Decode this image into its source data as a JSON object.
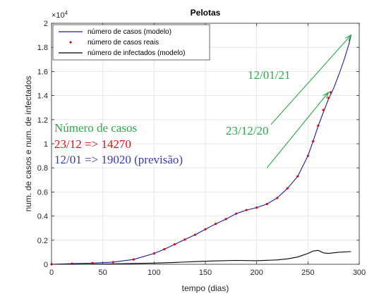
{
  "chart_data": {
    "type": "line",
    "title": "Pelotas",
    "xlabel": "tempo (dias)",
    "ylabel": "num. de casos e num. de infectados",
    "xlim": [
      0,
      300
    ],
    "ylim": [
      0,
      20000
    ],
    "x_ticks": [
      0,
      50,
      100,
      150,
      200,
      250,
      300
    ],
    "y_ticks": [
      0,
      2000,
      4000,
      6000,
      8000,
      10000,
      12000,
      14000,
      16000,
      18000,
      20000
    ],
    "y_tick_labels": [
      "0",
      "0.2",
      "0.4",
      "0.6",
      "0.8",
      "1",
      "1.2",
      "1.4",
      "1.6",
      "1.8",
      "2"
    ],
    "y_exponent": "×10",
    "y_exponent_power": "4",
    "grid": true,
    "legend_position": "top-left",
    "series": [
      {
        "name": "número de casos (modelo)",
        "style": "line",
        "color": "#1a1aa6",
        "x": [
          0,
          20,
          40,
          60,
          80,
          100,
          110,
          120,
          130,
          140,
          150,
          160,
          170,
          180,
          190,
          200,
          210,
          220,
          230,
          240,
          250,
          255,
          260,
          265,
          270,
          275,
          280,
          285,
          290,
          292
        ],
        "y": [
          0,
          50,
          100,
          180,
          400,
          900,
          1250,
          1650,
          2050,
          2450,
          2900,
          3350,
          3750,
          4200,
          4500,
          4700,
          5000,
          5500,
          6300,
          7300,
          9000,
          10200,
          11500,
          12600,
          13700,
          14600,
          15700,
          16900,
          18300,
          19020
        ]
      },
      {
        "name": "número de casos reais",
        "style": "markers",
        "color": "#e8000b",
        "x": [
          0,
          20,
          40,
          60,
          80,
          100,
          110,
          120,
          130,
          140,
          150,
          160,
          170,
          180,
          190,
          200,
          210,
          220,
          230,
          240,
          250,
          255,
          260,
          265,
          270,
          272
        ],
        "y": [
          0,
          50,
          100,
          180,
          400,
          900,
          1250,
          1650,
          2050,
          2450,
          2900,
          3350,
          3750,
          4200,
          4500,
          4700,
          5000,
          5500,
          6300,
          7300,
          9000,
          10200,
          11500,
          12800,
          13800,
          14270
        ]
      },
      {
        "name": "número de infectados (modelo)",
        "style": "line",
        "color": "#000000",
        "x": [
          0,
          50,
          100,
          120,
          140,
          160,
          180,
          200,
          220,
          230,
          240,
          250,
          255,
          260,
          265,
          270,
          280,
          292
        ],
        "y": [
          0,
          20,
          100,
          150,
          220,
          280,
          320,
          300,
          360,
          450,
          600,
          900,
          1100,
          1150,
          950,
          900,
          1000,
          1050
        ]
      }
    ],
    "annotations": [
      {
        "text": "12/01/21",
        "color": "#2ca848"
      },
      {
        "text": "23/12/20",
        "color": "#2ca848"
      },
      {
        "text": "Número de casos",
        "color": "#2ca848"
      },
      {
        "text": "23/12 => 14270",
        "color": "#e01010"
      },
      {
        "text": "12/01 => 19020 (previsão)",
        "color": "#3a3ab0"
      }
    ],
    "arrows": [
      {
        "from": [
          214,
          11600
        ],
        "to": [
          292,
          19020
        ],
        "color": "#2ca848"
      },
      {
        "from": [
          210,
          8000
        ],
        "to": [
          270,
          14270
        ],
        "color": "#2ca848"
      }
    ]
  }
}
